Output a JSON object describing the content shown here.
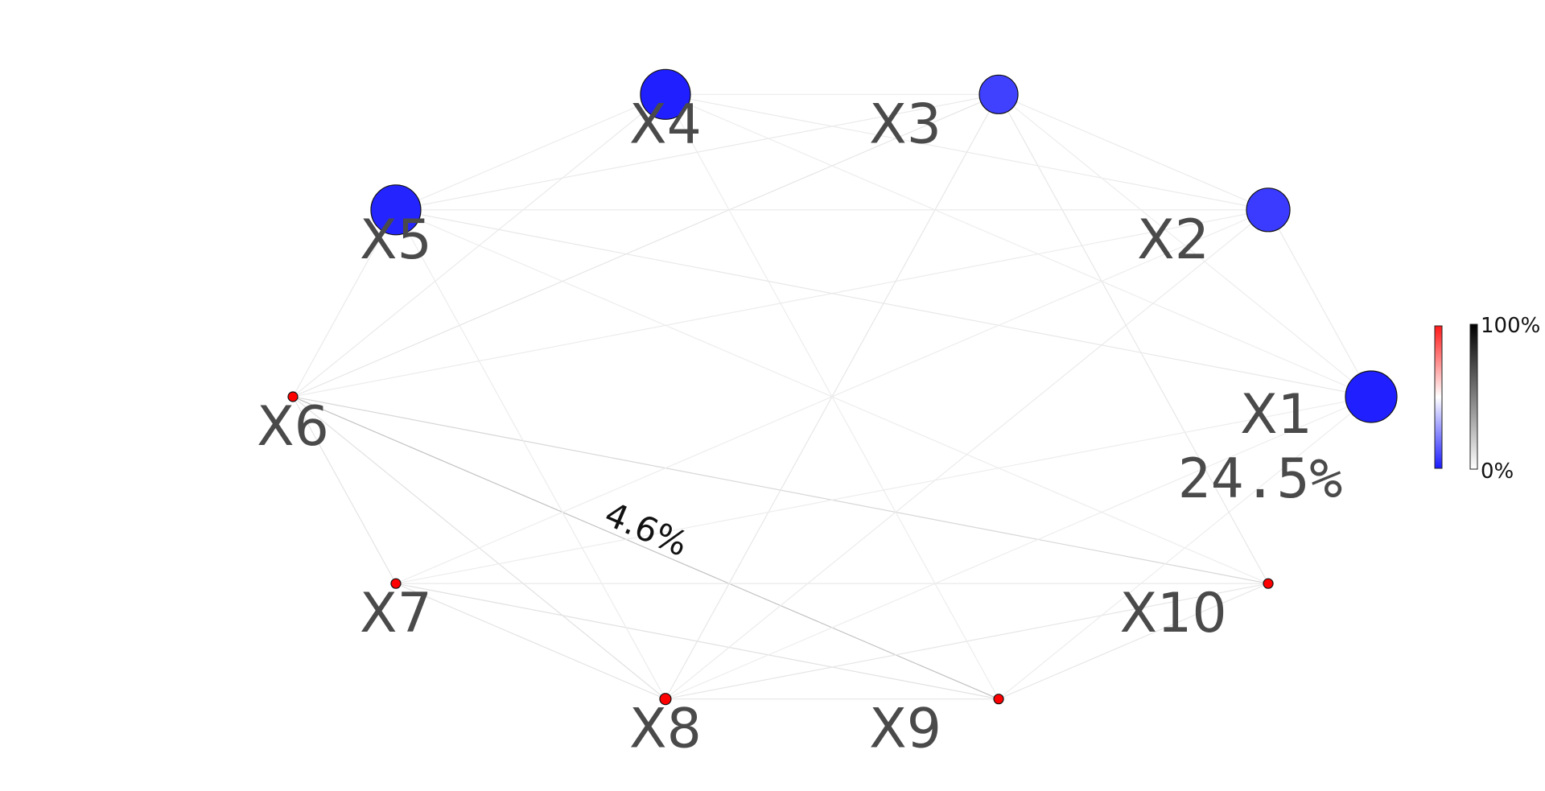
{
  "chart_data": {
    "type": "network",
    "nodes": [
      {
        "name": "X1",
        "value_pct": 24.5,
        "color": "#1f1fff",
        "value_label": "24.5%"
      },
      {
        "name": "X2",
        "color": "#3b3bff"
      },
      {
        "name": "X3",
        "color": "#4040ff"
      },
      {
        "name": "X4",
        "color": "#1f1fff"
      },
      {
        "name": "X5",
        "color": "#2424ff"
      },
      {
        "name": "X6",
        "color": "#ff0000"
      },
      {
        "name": "X7",
        "color": "#ff0000"
      },
      {
        "name": "X8",
        "color": "#ff0000"
      },
      {
        "name": "X9",
        "color": "#ff0000"
      },
      {
        "name": "X10",
        "color": "#ff0000"
      }
    ],
    "edges": [
      {
        "source": "X6",
        "target": "X9",
        "value_pct": 4.6,
        "label": "4.6%"
      },
      {
        "source": "X6",
        "target": "X10",
        "value_pct": 2.5
      },
      {
        "source": "X6",
        "target": "X8",
        "value_pct": 1.5
      },
      {
        "source": "X6",
        "target": "X7",
        "value_pct": 1.2
      },
      {
        "source": "X6",
        "target": "X3",
        "value_pct": 1.0
      },
      {
        "source": "X6",
        "target": "X4",
        "value_pct": 0.6
      },
      {
        "source": "X6",
        "target": "X5",
        "value_pct": 0.6
      },
      {
        "source": "X6",
        "target": "X2",
        "value_pct": 0.4
      },
      {
        "source": "X7",
        "target": "X8",
        "value_pct": 1.2
      },
      {
        "source": "X7",
        "target": "X9",
        "value_pct": 1.5
      },
      {
        "source": "X7",
        "target": "X10",
        "value_pct": 0.9
      },
      {
        "source": "X8",
        "target": "X9",
        "value_pct": 1.0
      },
      {
        "source": "X8",
        "target": "X10",
        "value_pct": 1.0
      },
      {
        "source": "X8",
        "target": "X3",
        "value_pct": 0.9
      },
      {
        "source": "X8",
        "target": "X2",
        "value_pct": 0.5
      },
      {
        "source": "X8",
        "target": "X5",
        "value_pct": 0.4
      },
      {
        "source": "X8",
        "target": "X1",
        "value_pct": 0.3
      },
      {
        "source": "X9",
        "target": "X10",
        "value_pct": 0.9
      },
      {
        "source": "X9",
        "target": "X4",
        "value_pct": 0.3
      },
      {
        "source": "X9",
        "target": "X1",
        "value_pct": 0.3
      },
      {
        "source": "X10",
        "target": "X3",
        "value_pct": 0.9
      },
      {
        "source": "X10",
        "target": "X5",
        "value_pct": 0.3
      },
      {
        "source": "X5",
        "target": "X1",
        "value_pct": 0.8
      },
      {
        "source": "X5",
        "target": "X2",
        "value_pct": 0.6
      },
      {
        "source": "X5",
        "target": "X3",
        "value_pct": 0.6
      },
      {
        "source": "X5",
        "target": "X4",
        "value_pct": 0.4
      },
      {
        "source": "X4",
        "target": "X3",
        "value_pct": 0.5
      },
      {
        "source": "X4",
        "target": "X2",
        "value_pct": 0.5
      },
      {
        "source": "X4",
        "target": "X1",
        "value_pct": 0.3
      },
      {
        "source": "X3",
        "target": "X2",
        "value_pct": 0.5
      },
      {
        "source": "X3",
        "target": "X1",
        "value_pct": 0.3
      },
      {
        "source": "X2",
        "target": "X1",
        "value_pct": 0.6
      },
      {
        "source": "X2",
        "target": "X7",
        "value_pct": 0.3
      },
      {
        "source": "X1",
        "target": "X7",
        "value_pct": 0.3
      }
    ],
    "colorbars": [
      {
        "name": "node-colorbar",
        "colors": [
          "#1a1aff",
          "#ffffff",
          "#ff1a1a"
        ]
      },
      {
        "name": "edge-colorbar",
        "colors": [
          "#ffffff",
          "#000000"
        ],
        "min_label": "0%",
        "max_label": "100%"
      }
    ]
  }
}
